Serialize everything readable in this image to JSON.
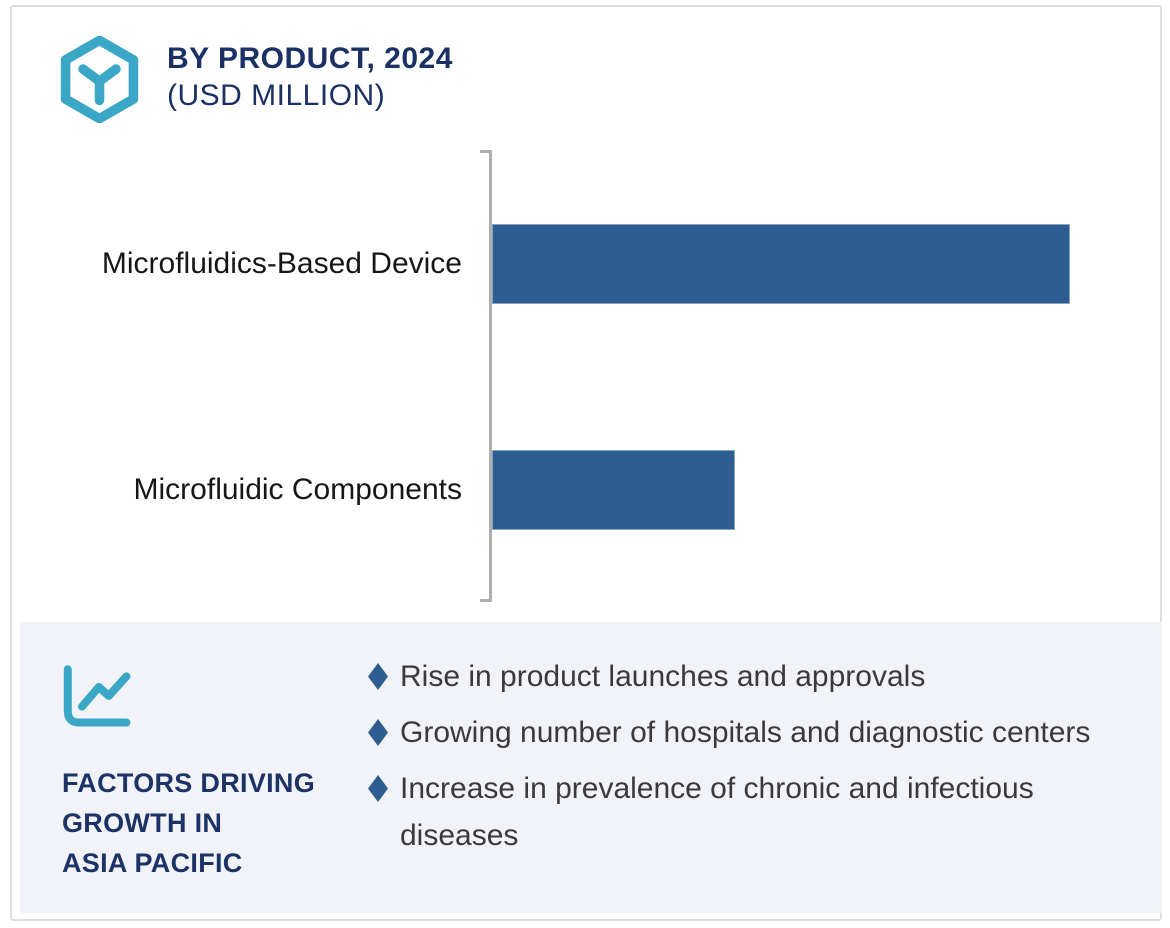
{
  "header": {
    "logo_icon": "hexagon-y-logo-icon",
    "title_line1": "BY PRODUCT, 2024",
    "title_line2": "(USD MILLION)"
  },
  "chart_data": {
    "type": "bar",
    "orientation": "horizontal",
    "title": "BY PRODUCT, 2024 (USD MILLION)",
    "categories": [
      "Microfluidics-Based Device",
      "Microfluidic Components"
    ],
    "values": [
      100,
      42
    ],
    "value_labels_visible": false,
    "axis_note": "no numeric axis shown; values are relative bar lengths (max = 100)",
    "xlabel": "",
    "ylabel": "",
    "grid": false,
    "legend": false,
    "bar_color": "#2e5e90",
    "axis_color": "#aeaeae"
  },
  "panel": {
    "trend_icon": "trending-line-chart-icon",
    "bullet_icon": "diamond-bullet-icon",
    "title_lines": [
      "FACTORS DRIVING",
      "GROWTH IN",
      "ASIA PACIFIC"
    ],
    "bullets": [
      {
        "text": "Rise in product launches and approvals"
      },
      {
        "text": "Growing number of hospitals and diagnostic centers"
      },
      {
        "text": "Increase in prevalence of chronic and infectious diseases"
      }
    ]
  },
  "colors": {
    "accent_teal": "#3ba7c6",
    "heading_navy": "#1b3064",
    "bar_blue": "#2e5e90",
    "panel_background": "#f1f3f8",
    "axis_gray": "#aeaeae",
    "frame_border": "#dddee4"
  }
}
